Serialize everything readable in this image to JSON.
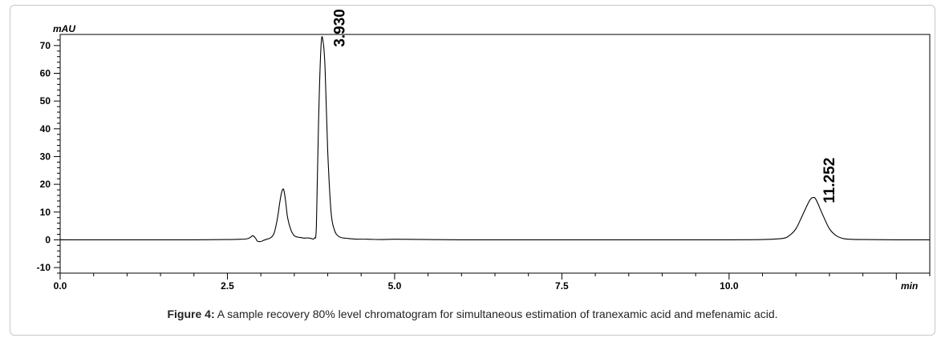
{
  "caption": {
    "label": "Figure 4:",
    "text": " A sample recovery 80% level chromatogram for simultaneous estimation of tranexamic acid and mefenamic acid."
  },
  "chart_data": {
    "type": "line",
    "title": "",
    "xlabel": "min",
    "ylabel": "mAU",
    "xlim": [
      0.0,
      13.0
    ],
    "ylim": [
      -12,
      74
    ],
    "x_ticks": [
      0.0,
      2.5,
      5.0,
      7.5,
      10.0
    ],
    "x_tick_labels": [
      "0.0",
      "2.5",
      "5.0",
      "7.5",
      "10.0"
    ],
    "y_ticks": [
      -10,
      0,
      10,
      20,
      30,
      40,
      50,
      60,
      70
    ],
    "y_tick_labels": [
      "-10",
      "0",
      "10",
      "20",
      "30",
      "40",
      "50",
      "60",
      "70"
    ],
    "grid": false,
    "series": [
      {
        "x": [
          0.0,
          0.5,
          1.0,
          1.5,
          2.0,
          2.5,
          2.7,
          2.8,
          2.85,
          2.88,
          2.92,
          2.95,
          3.0,
          3.05,
          3.1,
          3.15,
          3.2,
          3.25,
          3.28,
          3.31,
          3.34,
          3.37,
          3.4,
          3.45,
          3.5,
          3.55,
          3.6,
          3.65,
          3.7,
          3.75,
          3.8,
          3.83,
          3.86,
          3.9,
          3.93,
          3.96,
          4.0,
          4.05,
          4.1,
          4.15,
          4.2,
          4.3,
          4.4,
          4.6,
          4.8,
          5.0,
          5.5,
          6.0,
          7.0,
          8.0,
          9.0,
          10.0,
          10.5,
          10.8,
          10.9,
          11.0,
          11.1,
          11.2,
          11.252,
          11.3,
          11.4,
          11.5,
          11.6,
          11.7,
          11.8,
          12.0,
          12.5,
          13.0
        ],
        "y": [
          0,
          0,
          0,
          0,
          0,
          0.1,
          0.2,
          0.4,
          1.0,
          1.5,
          0.6,
          -0.5,
          -0.6,
          -0.1,
          0.3,
          0.8,
          2.5,
          8,
          13,
          17,
          18.2,
          14,
          8,
          3.5,
          1.5,
          1.0,
          0.8,
          0.6,
          0.7,
          0.5,
          0.6,
          5,
          40,
          70,
          71.5,
          62,
          32,
          10,
          3.5,
          1.5,
          0.8,
          0.5,
          0.3,
          0.2,
          0.1,
          0.2,
          0.1,
          0,
          0,
          0,
          0,
          0,
          0.1,
          0.5,
          1.5,
          4,
          9,
          14,
          15.2,
          14.5,
          9,
          4,
          1.5,
          0.5,
          0.2,
          0.1,
          0,
          0
        ]
      }
    ],
    "annotations": [
      {
        "text": "3.930",
        "x": 3.93,
        "y": 71.5
      },
      {
        "text": "11.252",
        "x": 11.252,
        "y": 15.2
      }
    ]
  }
}
